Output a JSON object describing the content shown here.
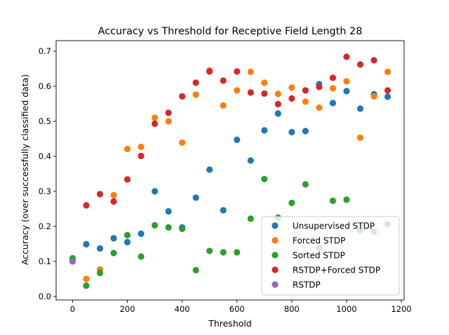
{
  "chart_data": {
    "type": "scatter",
    "title": "Accuracy vs Threshold for Receptive Field Length 28",
    "xlabel": "Threshold",
    "ylabel": "Accuracy (over successfully classified data)",
    "xlim": [
      -60,
      1210
    ],
    "ylim": [
      -0.01,
      0.73
    ],
    "xticks": [
      0,
      200,
      400,
      600,
      800,
      1000,
      1200
    ],
    "yticks": [
      0.0,
      0.1,
      0.2,
      0.3,
      0.4,
      0.5,
      0.6,
      0.7
    ],
    "grid": false,
    "legend_position": "lower-right",
    "series": [
      {
        "name": "Unsupervised STDP",
        "color": "#1f77b4",
        "x": [
          0,
          50,
          100,
          150,
          200,
          250,
          300,
          350,
          400,
          450,
          500,
          550,
          600,
          650,
          700,
          750,
          800,
          850,
          900,
          950,
          1000,
          1050,
          1100,
          1150
        ],
        "y": [
          0.106,
          0.149,
          0.137,
          0.166,
          0.155,
          0.179,
          0.3,
          0.243,
          0.197,
          0.282,
          0.362,
          0.246,
          0.447,
          0.388,
          0.474,
          0.522,
          0.469,
          0.472,
          0.606,
          0.552,
          0.586,
          0.536,
          0.577,
          0.57
        ]
      },
      {
        "name": "Forced STDP",
        "color": "#ff7f0e",
        "x": [
          50,
          100,
          150,
          200,
          250,
          300,
          350,
          400,
          450,
          500,
          550,
          600,
          650,
          700,
          750,
          800,
          850,
          900,
          950,
          1000,
          1050,
          1100,
          1150
        ],
        "y": [
          0.05,
          0.077,
          0.289,
          0.421,
          0.427,
          0.51,
          0.5,
          0.439,
          0.576,
          0.645,
          0.545,
          0.588,
          0.641,
          0.61,
          0.578,
          0.596,
          0.556,
          0.539,
          0.594,
          0.614,
          0.453,
          0.571,
          0.641
        ]
      },
      {
        "name": "Sorted STDP",
        "color": "#2ca02c",
        "x": [
          0,
          50,
          100,
          150,
          200,
          250,
          300,
          350,
          400,
          450,
          500,
          550,
          600,
          650,
          700,
          750,
          800,
          850,
          900,
          950,
          1000,
          1050,
          1100,
          1150
        ],
        "y": [
          0.109,
          0.031,
          0.067,
          0.124,
          0.175,
          0.114,
          0.203,
          0.197,
          0.193,
          0.075,
          0.13,
          0.126,
          0.126,
          0.222,
          0.335,
          0.225,
          0.267,
          0.32,
          0.139,
          0.273,
          0.276,
          0.189,
          0.185,
          0.206
        ]
      },
      {
        "name": "RSTDP+Forced STDP",
        "color": "#d62728",
        "x": [
          50,
          100,
          150,
          200,
          250,
          300,
          350,
          400,
          450,
          500,
          550,
          600,
          650,
          700,
          750,
          800,
          850,
          900,
          950,
          1000,
          1050,
          1100,
          1150
        ],
        "y": [
          0.26,
          0.292,
          0.271,
          0.334,
          0.401,
          0.493,
          0.524,
          0.571,
          0.61,
          0.642,
          0.616,
          0.642,
          0.582,
          0.579,
          0.549,
          0.565,
          0.588,
          0.598,
          0.624,
          0.684,
          0.662,
          0.674,
          0.588
        ]
      },
      {
        "name": "RSTDP",
        "color": "#9467bd",
        "x": [
          0
        ],
        "y": [
          0.1
        ]
      }
    ]
  }
}
